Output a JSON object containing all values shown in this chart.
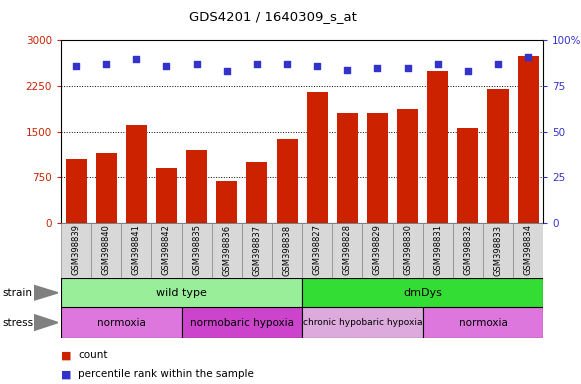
{
  "title": "GDS4201 / 1640309_s_at",
  "samples": [
    "GSM398839",
    "GSM398840",
    "GSM398841",
    "GSM398842",
    "GSM398835",
    "GSM398836",
    "GSM398837",
    "GSM398838",
    "GSM398827",
    "GSM398828",
    "GSM398829",
    "GSM398830",
    "GSM398831",
    "GSM398832",
    "GSM398833",
    "GSM398834"
  ],
  "counts": [
    1050,
    1150,
    1600,
    900,
    1200,
    680,
    1000,
    1380,
    2150,
    1800,
    1800,
    1870,
    2500,
    1550,
    2200,
    2750
  ],
  "percentiles": [
    86,
    87,
    90,
    86,
    87,
    83,
    87,
    87,
    86,
    84,
    85,
    85,
    87,
    83,
    87,
    91
  ],
  "bar_color": "#cc2200",
  "dot_color": "#3333cc",
  "ylim_left": [
    0,
    3000
  ],
  "ylim_right": [
    0,
    100
  ],
  "yticks_left": [
    0,
    750,
    1500,
    2250,
    3000
  ],
  "yticks_right": [
    0,
    25,
    50,
    75,
    100
  ],
  "grid_lines": [
    750,
    1500,
    2250
  ],
  "strain_groups": [
    {
      "label": "wild type",
      "start": 0,
      "end": 8,
      "color": "#99ee99"
    },
    {
      "label": "dmDys",
      "start": 8,
      "end": 16,
      "color": "#33dd33"
    }
  ],
  "stress_groups": [
    {
      "label": "normoxia",
      "start": 0,
      "end": 4,
      "color": "#dd77dd"
    },
    {
      "label": "normobaric hypoxia",
      "start": 4,
      "end": 8,
      "color": "#cc44cc"
    },
    {
      "label": "chronic hypobaric hypoxia",
      "start": 8,
      "end": 12,
      "color": "#ddaadd"
    },
    {
      "label": "normoxia",
      "start": 12,
      "end": 16,
      "color": "#dd77dd"
    }
  ],
  "bg_color": "#ffffff",
  "tick_label_color": "#d8d8d8"
}
